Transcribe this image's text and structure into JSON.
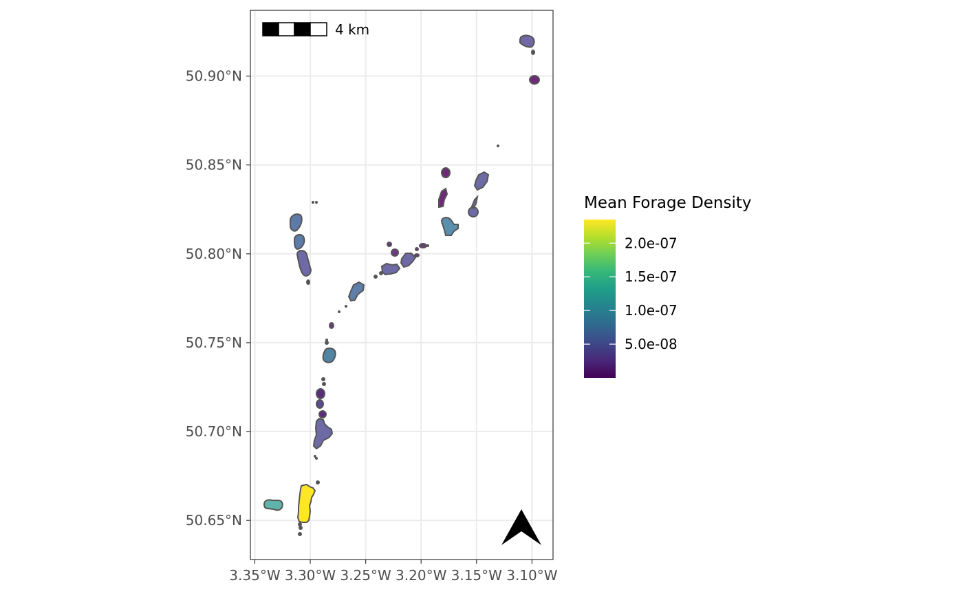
{
  "map": {
    "x_ticks": [
      "3.35°W",
      "3.30°W",
      "3.25°W",
      "3.20°W",
      "3.15°W",
      "3.10°W"
    ],
    "y_ticks": [
      "50.90°N",
      "50.85°N",
      "50.80°N",
      "50.75°N",
      "50.70°N",
      "50.65°N"
    ],
    "x_tick_values": [
      -3.35,
      -3.3,
      -3.25,
      -3.2,
      -3.15,
      -3.1
    ],
    "y_tick_values": [
      50.9,
      50.85,
      50.8,
      50.75,
      50.7,
      50.65
    ],
    "lon_range": [
      -3.354,
      -3.081
    ],
    "lat_range": [
      50.628,
      50.937
    ],
    "grid": true,
    "background": "#ffffff",
    "gridline_color": "#ebebeb",
    "outline_color": "#555555",
    "scale_bar": {
      "label": "4 km",
      "placement": "top-left",
      "segments": 4
    },
    "north_arrow": {
      "icon": "north-arrow-icon",
      "placement": "bottom-right"
    }
  },
  "legend": {
    "title": "Mean Forage Density",
    "placement": "right",
    "labels": [
      "2.0e-07",
      "1.5e-07",
      "1.0e-07",
      "5.0e-08"
    ],
    "label_values": [
      2e-07,
      1.5e-07,
      1e-07,
      5e-08
    ],
    "range": [
      0,
      2.35e-07
    ],
    "palette": "viridis",
    "colors": [
      "#440154",
      "#482878",
      "#3e4989",
      "#31688e",
      "#26828e",
      "#1f9e89",
      "#35b779",
      "#6ece58",
      "#b5de2b",
      "#fde725"
    ]
  }
}
